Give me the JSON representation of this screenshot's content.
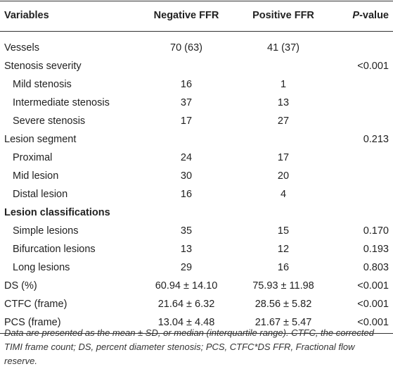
{
  "table": {
    "header": {
      "variables": "Variables",
      "negative": "Negative FFR",
      "positive": "Positive FFR",
      "p_italic": "P",
      "p_rest": "-value"
    },
    "rows": [
      {
        "label": "Vessels",
        "negative": "70 (63)",
        "positive": "41 (37)"
      },
      {
        "label": "Stenosis severity",
        "p_value": "<0.001",
        "items": [
          {
            "label": "Mild stenosis",
            "negative": "16",
            "positive": "1"
          },
          {
            "label": "Intermediate stenosis",
            "negative": "37",
            "positive": "13"
          },
          {
            "label": "Severe stenosis",
            "negative": "17",
            "positive": "27"
          }
        ]
      },
      {
        "label": "Lesion segment",
        "p_value": "0.213",
        "items": [
          {
            "label": "Proximal",
            "negative": "24",
            "positive": "17"
          },
          {
            "label": "Mid lesion",
            "negative": "30",
            "positive": "20"
          },
          {
            "label": "Distal lesion",
            "negative": "16",
            "positive": "4"
          }
        ]
      },
      {
        "label": "Lesion classifications",
        "items": [
          {
            "label": "Simple lesions",
            "negative": "35",
            "positive": "15",
            "p_value": "0.170"
          },
          {
            "label": "Bifurcation lesions",
            "negative": "13",
            "positive": "12",
            "p_value": "0.193"
          },
          {
            "label": "Long lesions",
            "negative": "29",
            "positive": "16",
            "p_value": "0.803"
          }
        ]
      },
      {
        "label": "DS (%)",
        "negative": "60.94 ± 14.10",
        "positive": "75.93 ± 11.98",
        "p_value": "<0.001"
      },
      {
        "label": "CTFC (frame)",
        "negative": "21.64 ± 6.32",
        "positive": "28.56 ± 5.82",
        "p_value": "<0.001"
      },
      {
        "label": "PCS (frame)",
        "negative": "13.04 ± 4.48",
        "positive": "21.67 ± 5.47",
        "p_value": "<0.001"
      }
    ]
  },
  "footnote": "Data are presented as the mean ± SD, or median (interquartile range). CTFC, the corrected TIMI frame count; DS, percent diameter stenosis; PCS, CTFC*DS FFR, Fractional flow reserve."
}
